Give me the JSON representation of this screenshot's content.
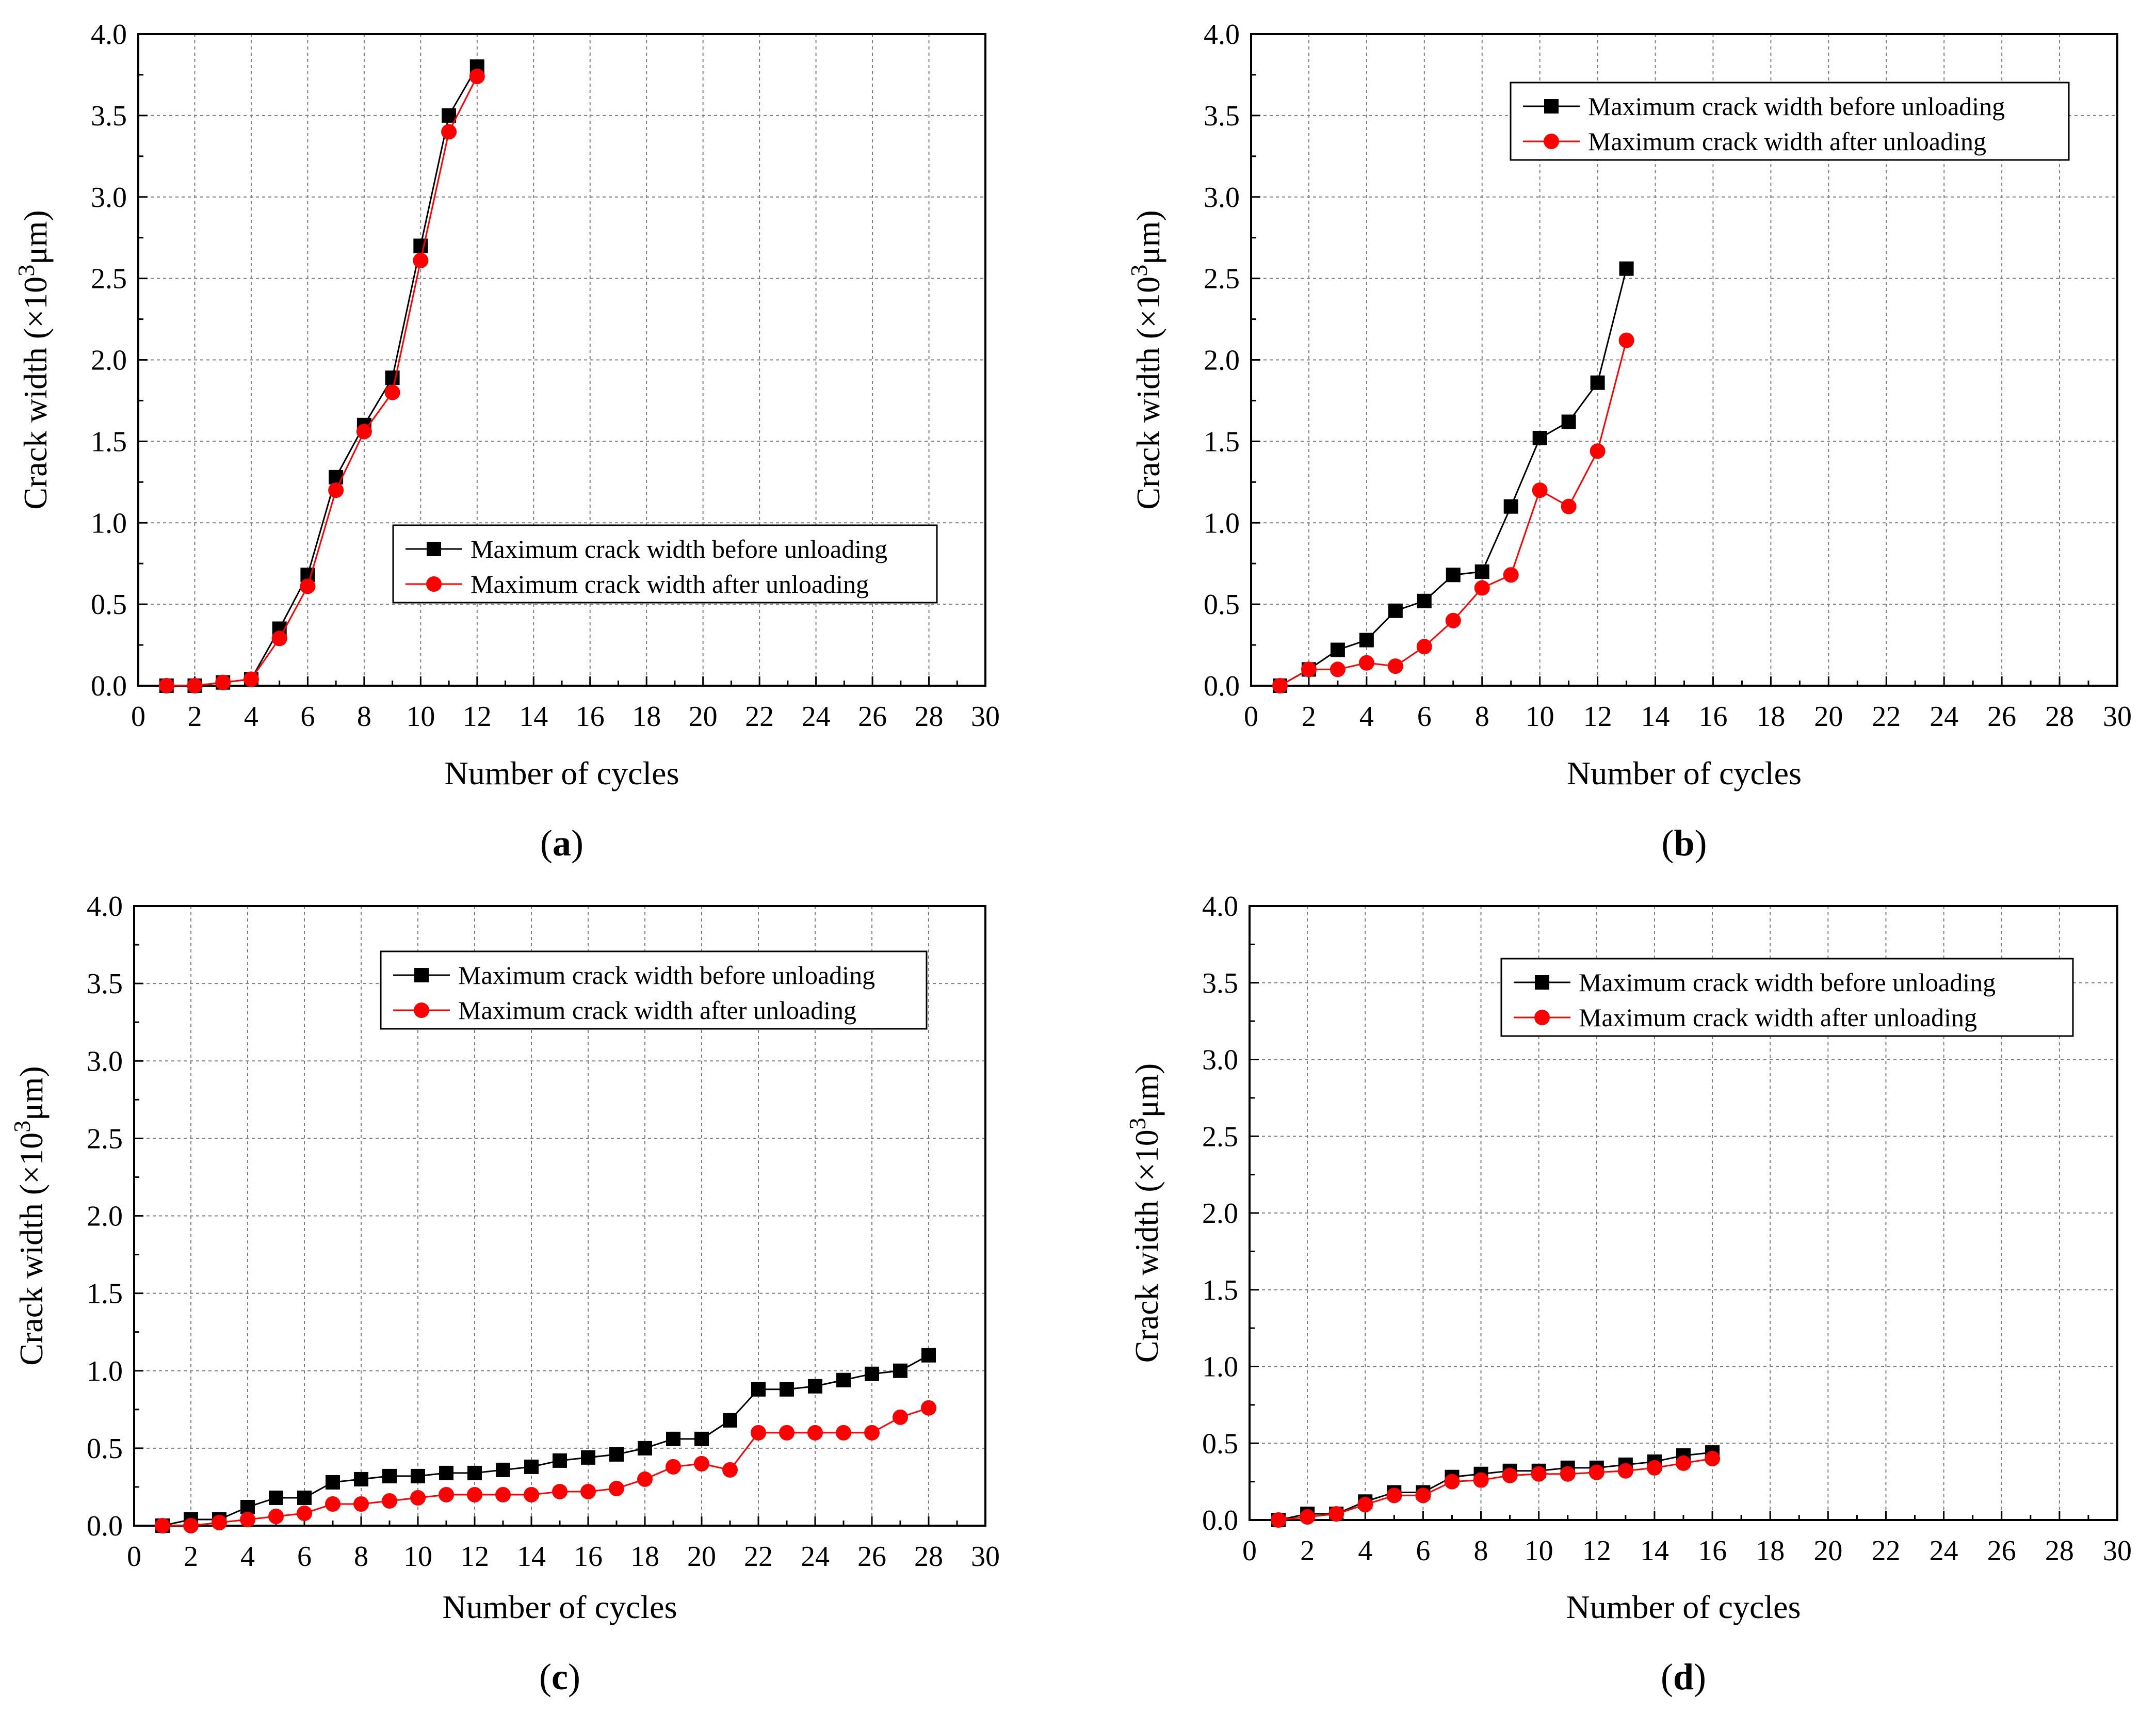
{
  "figure_title": "",
  "chart_data": [
    {
      "panel": "a",
      "caption_letter": "a",
      "type": "line",
      "xlabel": "Number of cycles",
      "ylabel_prefix": "Crack width  (×10",
      "ylabel_exp": "3",
      "ylabel_suffix": "μm)",
      "xlim": [
        0,
        30
      ],
      "ylim": [
        0,
        4.0
      ],
      "xticks": [
        0,
        2,
        4,
        6,
        8,
        10,
        12,
        14,
        16,
        18,
        20,
        22,
        24,
        26,
        28,
        30
      ],
      "yticks": [
        0.0,
        0.5,
        1.0,
        1.5,
        2.0,
        2.5,
        3.0,
        3.5,
        4.0
      ],
      "ytick_labels": [
        "0.0",
        "0.5",
        "1.0",
        "1.5",
        "2.0",
        "2.5",
        "3.0",
        "3.5",
        "4.0"
      ],
      "grid": true,
      "legend_position": "lower-middle",
      "series": [
        {
          "name": "Maximum crack width before unloading",
          "color": "#000000",
          "marker": "square",
          "x": [
            1,
            2,
            3,
            4,
            5,
            6,
            7,
            8,
            9,
            10,
            11,
            12
          ],
          "y": [
            0.0,
            0.0,
            0.02,
            0.04,
            0.35,
            0.68,
            1.28,
            1.6,
            1.89,
            2.7,
            3.5,
            3.8
          ]
        },
        {
          "name": "Maximum crack width after unloading",
          "color": "#ff0000",
          "marker": "circle",
          "x": [
            1,
            2,
            3,
            4,
            5,
            6,
            7,
            8,
            9,
            10,
            11,
            12
          ],
          "y": [
            0.0,
            0.0,
            0.02,
            0.04,
            0.29,
            0.61,
            1.2,
            1.56,
            1.8,
            2.61,
            3.4,
            3.74
          ]
        }
      ]
    },
    {
      "panel": "b",
      "caption_letter": "b",
      "type": "line",
      "xlabel": "Number of cycles",
      "ylabel_prefix": "Crack width  (×10",
      "ylabel_exp": "3",
      "ylabel_suffix": "μm)",
      "xlim": [
        0,
        30
      ],
      "ylim": [
        0,
        4.0
      ],
      "xticks": [
        0,
        2,
        4,
        6,
        8,
        10,
        12,
        14,
        16,
        18,
        20,
        22,
        24,
        26,
        28,
        30
      ],
      "yticks": [
        0.0,
        0.5,
        1.0,
        1.5,
        2.0,
        2.5,
        3.0,
        3.5,
        4.0
      ],
      "ytick_labels": [
        "0.0",
        "0.5",
        "1.0",
        "1.5",
        "2.0",
        "2.5",
        "3.0",
        "3.5",
        "4.0"
      ],
      "grid": true,
      "legend_position": "top-right",
      "series": [
        {
          "name": "Maximum crack width before unloading",
          "color": "#000000",
          "marker": "square",
          "x": [
            1,
            2,
            3,
            4,
            5,
            6,
            7,
            8,
            9,
            10,
            11,
            12,
            13
          ],
          "y": [
            0.0,
            0.1,
            0.22,
            0.28,
            0.46,
            0.52,
            0.68,
            0.7,
            1.1,
            1.52,
            1.62,
            1.86,
            2.56
          ]
        },
        {
          "name": "Maximum crack width after unloading",
          "color": "#ff0000",
          "marker": "circle",
          "x": [
            1,
            2,
            3,
            4,
            5,
            6,
            7,
            8,
            9,
            10,
            11,
            12,
            13
          ],
          "y": [
            0.0,
            0.1,
            0.1,
            0.14,
            0.12,
            0.24,
            0.4,
            0.6,
            0.68,
            1.2,
            1.1,
            1.44,
            2.12
          ]
        }
      ]
    },
    {
      "panel": "c",
      "caption_letter": "c",
      "type": "line",
      "xlabel": "Number of cycles",
      "ylabel_prefix": "Crack width  (×10",
      "ylabel_exp": "3",
      "ylabel_suffix": "μm)",
      "xlim": [
        0,
        30
      ],
      "ylim": [
        0,
        4.0
      ],
      "xticks": [
        0,
        2,
        4,
        6,
        8,
        10,
        12,
        14,
        16,
        18,
        20,
        22,
        24,
        26,
        28,
        30
      ],
      "yticks": [
        0.0,
        0.5,
        1.0,
        1.5,
        2.0,
        2.5,
        3.0,
        3.5,
        4.0
      ],
      "ytick_labels": [
        "0.0",
        "0.5",
        "1.0",
        "1.5",
        "2.0",
        "2.5",
        "3.0",
        "3.5",
        "4.0"
      ],
      "grid": true,
      "legend_position": "top-middle",
      "series": [
        {
          "name": "Maximum crack width before unloading",
          "color": "#000000",
          "marker": "square",
          "x": [
            1,
            2,
            3,
            4,
            5,
            6,
            7,
            8,
            9,
            10,
            11,
            12,
            13,
            14,
            15,
            16,
            17,
            18,
            19,
            20,
            21,
            22,
            23,
            24,
            25,
            26,
            27,
            28
          ],
          "y": [
            0.0,
            0.04,
            0.04,
            0.12,
            0.18,
            0.18,
            0.28,
            0.3,
            0.32,
            0.32,
            0.34,
            0.34,
            0.36,
            0.38,
            0.42,
            0.44,
            0.46,
            0.5,
            0.56,
            0.56,
            0.68,
            0.88,
            0.88,
            0.9,
            0.94,
            0.98,
            1.0,
            1.1
          ]
        },
        {
          "name": "Maximum crack width after unloading",
          "color": "#ff0000",
          "marker": "circle",
          "x": [
            1,
            2,
            3,
            4,
            5,
            6,
            7,
            8,
            9,
            10,
            11,
            12,
            13,
            14,
            15,
            16,
            17,
            18,
            19,
            20,
            21,
            22,
            23,
            24,
            25,
            26,
            27,
            28
          ],
          "y": [
            0.0,
            0.0,
            0.02,
            0.04,
            0.06,
            0.08,
            0.14,
            0.14,
            0.16,
            0.18,
            0.2,
            0.2,
            0.2,
            0.2,
            0.22,
            0.22,
            0.24,
            0.3,
            0.38,
            0.4,
            0.36,
            0.6,
            0.6,
            0.6,
            0.6,
            0.6,
            0.7,
            0.76
          ]
        }
      ]
    },
    {
      "panel": "d",
      "caption_letter": "d",
      "type": "line",
      "xlabel": "Number of cycles",
      "ylabel_prefix": "Crack width  (×10",
      "ylabel_exp": "3",
      "ylabel_suffix": "μm)",
      "xlim": [
        0,
        30
      ],
      "ylim": [
        0,
        4.0
      ],
      "xticks": [
        0,
        2,
        4,
        6,
        8,
        10,
        12,
        14,
        16,
        18,
        20,
        22,
        24,
        26,
        28,
        30
      ],
      "yticks": [
        0.0,
        0.5,
        1.0,
        1.5,
        2.0,
        2.5,
        3.0,
        3.5,
        4.0
      ],
      "ytick_labels": [
        "0.0",
        "0.5",
        "1.0",
        "1.5",
        "2.0",
        "2.5",
        "3.0",
        "3.5",
        "4.0"
      ],
      "grid": true,
      "legend_position": "top-right",
      "series": [
        {
          "name": "Maximum crack width before unloading",
          "color": "#000000",
          "marker": "square",
          "x": [
            1,
            2,
            3,
            4,
            5,
            6,
            7,
            8,
            9,
            10,
            11,
            12,
            13,
            14,
            15,
            16
          ],
          "y": [
            0.0,
            0.04,
            0.04,
            0.12,
            0.18,
            0.18,
            0.28,
            0.3,
            0.32,
            0.32,
            0.34,
            0.34,
            0.36,
            0.38,
            0.42,
            0.44
          ]
        },
        {
          "name": "Maximum crack width after unloading",
          "color": "#ff0000",
          "marker": "circle",
          "x": [
            1,
            2,
            3,
            4,
            5,
            6,
            7,
            8,
            9,
            10,
            11,
            12,
            13,
            14,
            15,
            16
          ],
          "y": [
            0.0,
            0.02,
            0.04,
            0.1,
            0.16,
            0.16,
            0.25,
            0.26,
            0.29,
            0.3,
            0.3,
            0.31,
            0.32,
            0.34,
            0.37,
            0.4
          ]
        }
      ]
    }
  ]
}
